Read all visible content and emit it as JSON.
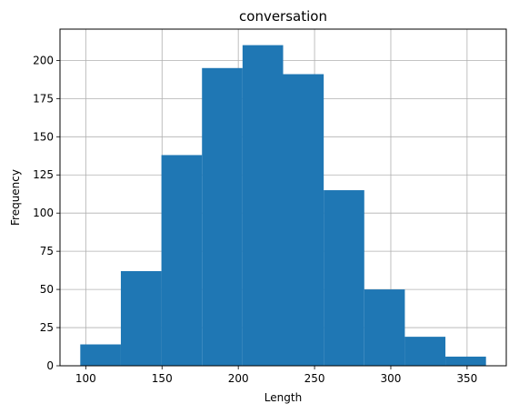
{
  "chart_data": {
    "type": "bar",
    "title": "conversation",
    "xlabel": "Length",
    "ylabel": "Frequency",
    "bin_edges": [
      96.4,
      123.0,
      149.6,
      176.2,
      202.8,
      229.4,
      256.0,
      282.6,
      309.2,
      335.8,
      362.4
    ],
    "values": [
      14,
      62,
      138,
      195,
      210,
      191,
      115,
      50,
      19,
      6
    ],
    "xlim": [
      83.1,
      375.7
    ],
    "ylim": [
      0,
      220.5
    ],
    "xticks": [
      100,
      150,
      200,
      250,
      300,
      350
    ],
    "yticks": [
      0,
      25,
      50,
      75,
      100,
      125,
      150,
      175,
      200
    ],
    "grid": true,
    "bar_color": "#1f77b4",
    "grid_color": "#b0b0b0"
  }
}
